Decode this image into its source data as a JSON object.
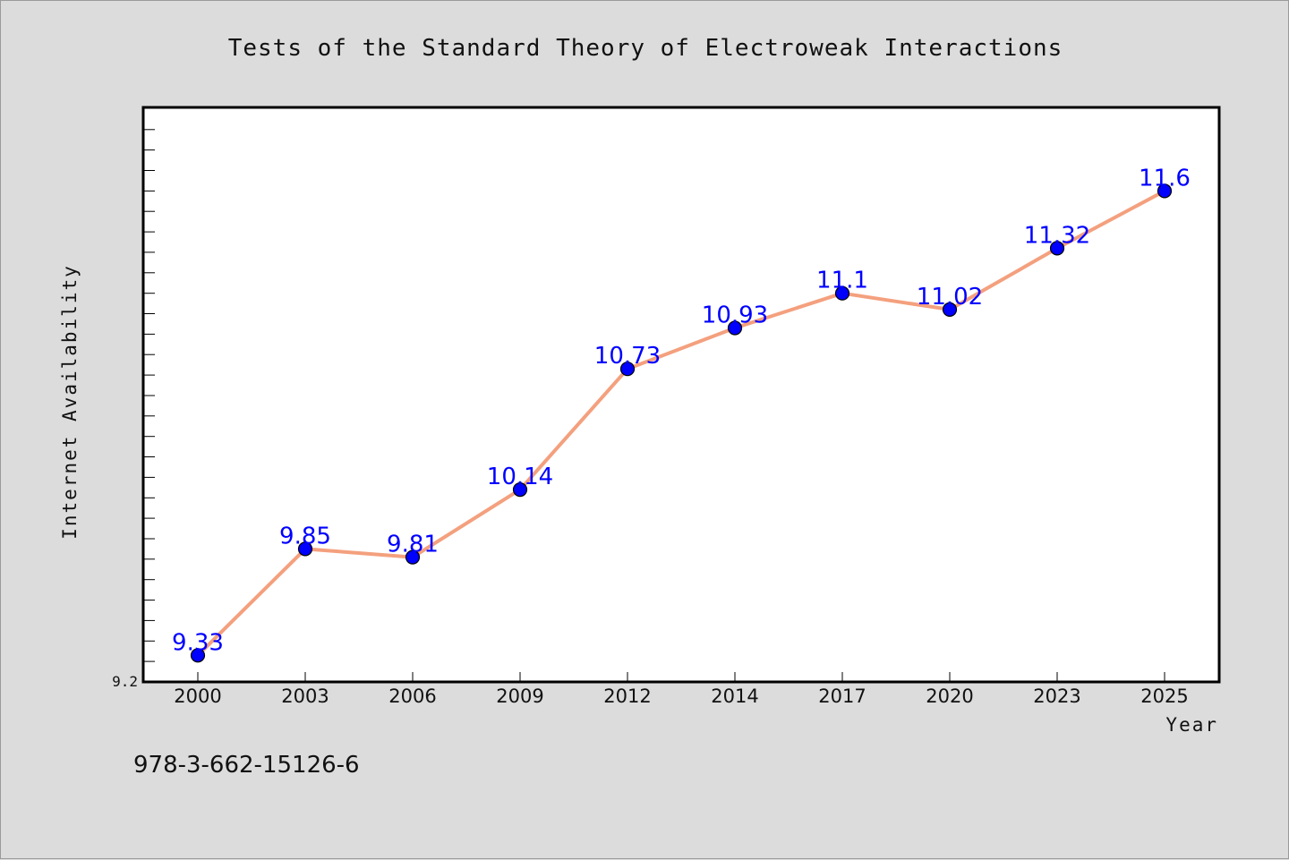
{
  "colors": {
    "background": "#dcdcdc",
    "plot_background": "#ffffff",
    "line": "#f4a07e",
    "marker": "#0000ff",
    "label": "#0000ff"
  },
  "chart_data": {
    "type": "line",
    "title": "Tests of the Standard Theory of Electroweak Interactions",
    "xlabel": "Year",
    "ylabel": "Internet Availability",
    "categories": [
      "2000",
      "2003",
      "2006",
      "2009",
      "2012",
      "2014",
      "2017",
      "2020",
      "2023",
      "2025"
    ],
    "series": [
      {
        "values": [
          9.33,
          9.85,
          9.81,
          10.14,
          10.73,
          10.93,
          11.1,
          11.02,
          11.32,
          11.6
        ],
        "labels": [
          "9.33",
          "9.85",
          "9.81",
          "10.14",
          "10.73",
          "10.93",
          "11.1",
          "11.02",
          "11.32",
          "11.6"
        ]
      }
    ],
    "ylim": [
      9.2,
      12.0
    ],
    "ytick_labels": [
      "9.2"
    ],
    "grid": false,
    "legend": "none"
  },
  "footer": {
    "isbn": "978-3-662-15126-6"
  }
}
